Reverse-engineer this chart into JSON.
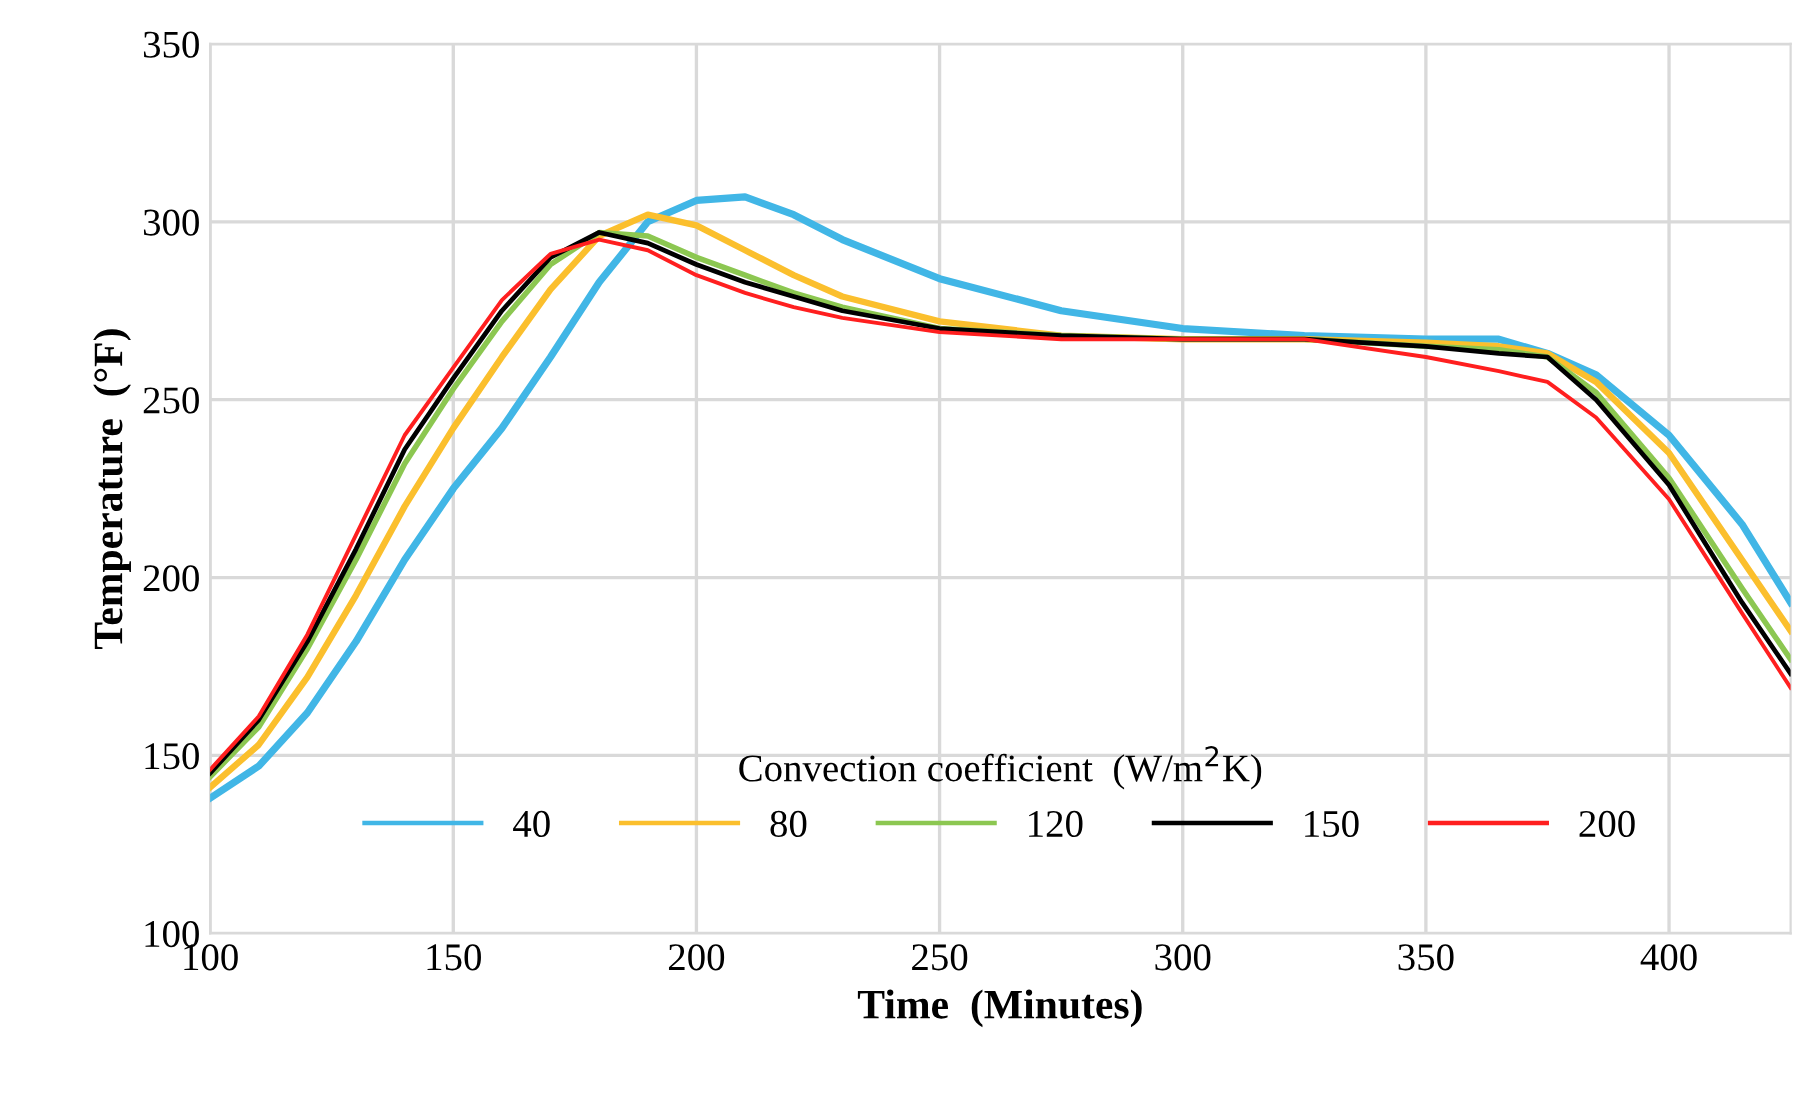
{
  "chart_data": {
    "type": "line",
    "xlabel": "Time  (Minutes)",
    "ylabel": "Temperature  (°F)",
    "legend_title": "Convection coefficient  (W/m$^{2}$K)",
    "x": [
      100,
      110,
      120,
      130,
      140,
      150,
      160,
      170,
      180,
      190,
      200,
      210,
      220,
      230,
      250,
      275,
      300,
      325,
      350,
      365,
      375,
      385,
      400,
      415,
      425
    ],
    "series": [
      {
        "name": "40",
        "color": "#41b6e6",
        "values": [
          138,
          147,
          162,
          182,
          205,
          225,
          242,
          262,
          283,
          300,
          306,
          307,
          302,
          295,
          284,
          275,
          270,
          268,
          267,
          267,
          263,
          257,
          240,
          215,
          193
        ]
      },
      {
        "name": "80",
        "color": "#fbbf2d",
        "values": [
          141,
          153,
          172,
          195,
          220,
          242,
          262,
          281,
          296,
          302,
          299,
          292,
          285,
          279,
          272,
          268,
          267,
          267,
          266,
          265,
          263,
          255,
          235,
          205,
          185
        ]
      },
      {
        "name": "120",
        "color": "#8cc751",
        "values": [
          144,
          158,
          180,
          205,
          232,
          253,
          272,
          288,
          297,
          296,
          290,
          285,
          280,
          276,
          270,
          268,
          267,
          267,
          265,
          264,
          262,
          252,
          228,
          197,
          177
        ]
      },
      {
        "name": "150",
        "color": "#000000",
        "values": [
          145,
          160,
          182,
          208,
          236,
          256,
          275,
          290,
          297,
          294,
          288,
          283,
          279,
          275,
          270,
          268,
          267,
          267,
          265,
          263,
          262,
          250,
          226,
          193,
          173
        ]
      },
      {
        "name": "200",
        "color": "#ff1f1f",
        "values": [
          146,
          161,
          184,
          212,
          240,
          259,
          278,
          291,
          295,
          292,
          285,
          280,
          276,
          273,
          269,
          267,
          267,
          267,
          262,
          258,
          255,
          245,
          222,
          190,
          169
        ]
      }
    ],
    "xlim": [
      100,
      425
    ],
    "ylim": [
      100,
      350
    ],
    "xticks": [
      100,
      150,
      200,
      250,
      300,
      350,
      400
    ],
    "yticks": [
      100,
      150,
      200,
      250,
      300,
      350
    ],
    "grid": true,
    "legend": "bottom",
    "marker": "none",
    "line_style": "solid"
  }
}
